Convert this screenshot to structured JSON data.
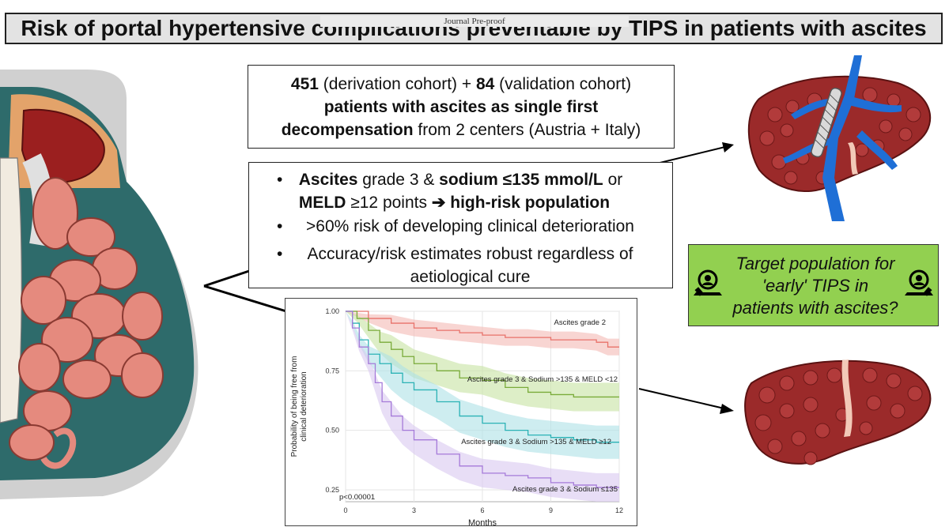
{
  "header": {
    "title": "Risk of portal hypertensive complications preventable by TIPS in patients with ascites",
    "watermark": "Journal Pre-proof"
  },
  "box1": {
    "n_derivation": "451",
    "derivation_label": " (derivation cohort) + ",
    "n_validation": "84",
    "validation_label": " (validation cohort)",
    "bold_line": "patients with ascites as single first",
    "bold_start": "decompensation",
    "rest": " from 2 centers (Austria + Italy)"
  },
  "box2": {
    "bullet1_a": "Ascites",
    "bullet1_b": " grade 3 & ",
    "bullet1_c": "sodium ≤135 mmol/L",
    "bullet1_d": " or",
    "bullet1_e": "MELD",
    "bullet1_f": " ≥12 points ",
    "bullet1_arrow": "➔",
    "bullet1_g": " high-risk population",
    "bullet2": ">60% risk of developing clinical deterioration",
    "bullet3_line1": "Accuracy/risk estimates robust regardless of",
    "bullet3_line2": "aetiological cure",
    "bullet_symbol": "•"
  },
  "green_box": {
    "line1": "Target population for",
    "line2": "'early' TIPS in",
    "line3": "patients with ascites?"
  },
  "colors": {
    "liver": "#9b2a2a",
    "vessel": "#1f6fd6",
    "green_box": "#92d050",
    "abdomen_teal": "#2e6b6b",
    "intestine": "#e58a7e"
  },
  "chart_data": {
    "type": "line",
    "title": "",
    "xlabel": "Months",
    "ylabel_line1": "Probability of being free from",
    "ylabel_line2": "clinical deterioration",
    "xlim": [
      0,
      12
    ],
    "ylim": [
      0.2,
      1.0
    ],
    "x_ticks": [
      "0",
      "3",
      "6",
      "9",
      "12"
    ],
    "y_ticks": [
      "1.00",
      "0.75",
      "0.50",
      "0.25"
    ],
    "p_value": "p<0.00001",
    "series": [
      {
        "name": "Ascites grade 2",
        "color": "#e8726a",
        "band": "#f3b9b4",
        "points": [
          [
            0,
            1.0
          ],
          [
            1,
            0.97
          ],
          [
            2,
            0.95
          ],
          [
            3,
            0.93
          ],
          [
            4,
            0.92
          ],
          [
            5,
            0.91
          ],
          [
            6,
            0.9
          ],
          [
            7,
            0.89
          ],
          [
            8,
            0.89
          ],
          [
            9,
            0.88
          ],
          [
            10,
            0.88
          ],
          [
            11,
            0.87
          ],
          [
            11.5,
            0.85
          ],
          [
            12,
            0.85
          ]
        ]
      },
      {
        "name": "Ascites grade 3 & Sodium >135 & MELD <12",
        "color": "#7aab3a",
        "band": "#c6e3a1",
        "points": [
          [
            0,
            1.0
          ],
          [
            0.5,
            0.97
          ],
          [
            1,
            0.92
          ],
          [
            1.5,
            0.87
          ],
          [
            2,
            0.84
          ],
          [
            2.5,
            0.81
          ],
          [
            3,
            0.78
          ],
          [
            4,
            0.75
          ],
          [
            5,
            0.72
          ],
          [
            6,
            0.71
          ],
          [
            7,
            0.68
          ],
          [
            8,
            0.66
          ],
          [
            9,
            0.65
          ],
          [
            10,
            0.64
          ],
          [
            11,
            0.64
          ],
          [
            12,
            0.64
          ]
        ]
      },
      {
        "name": "Ascites grade 3 & Sodium >135 & MELD ≥12",
        "color": "#2bb2b5",
        "band": "#aee1e6",
        "points": [
          [
            0,
            1.0
          ],
          [
            0.3,
            0.95
          ],
          [
            0.6,
            0.88
          ],
          [
            1,
            0.82
          ],
          [
            1.5,
            0.78
          ],
          [
            2,
            0.74
          ],
          [
            2.5,
            0.7
          ],
          [
            3,
            0.67
          ],
          [
            4,
            0.62
          ],
          [
            5,
            0.56
          ],
          [
            6,
            0.53
          ],
          [
            7,
            0.5
          ],
          [
            8,
            0.48
          ],
          [
            9,
            0.47
          ],
          [
            10,
            0.46
          ],
          [
            11,
            0.45
          ],
          [
            12,
            0.45
          ]
        ]
      },
      {
        "name": "Ascites grade 3 & Sodium ≤135",
        "color": "#a57ad9",
        "band": "#d9c8f0",
        "points": [
          [
            0,
            1.0
          ],
          [
            0.3,
            0.93
          ],
          [
            0.6,
            0.85
          ],
          [
            1,
            0.78
          ],
          [
            1.3,
            0.7
          ],
          [
            1.6,
            0.62
          ],
          [
            2,
            0.56
          ],
          [
            2.5,
            0.5
          ],
          [
            3,
            0.46
          ],
          [
            4,
            0.4
          ],
          [
            5,
            0.35
          ],
          [
            6,
            0.32
          ],
          [
            7,
            0.31
          ],
          [
            8,
            0.3
          ],
          [
            9,
            0.28
          ],
          [
            10,
            0.27
          ],
          [
            11,
            0.26
          ],
          [
            12,
            0.26
          ]
        ]
      }
    ]
  }
}
